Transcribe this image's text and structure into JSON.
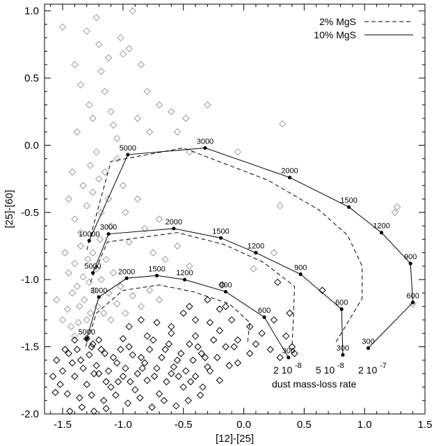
{
  "chart_data": {
    "type": "scatter",
    "xlabel": "[12]-[25]",
    "ylabel": "[25]-[60]",
    "xlim": [
      -1.65,
      1.5
    ],
    "ylim": [
      -2.0,
      1.05
    ],
    "xticks": [
      "-1.5",
      "-1.0",
      "-0.5",
      "0.0",
      "0.5",
      "1.0",
      "1.5"
    ],
    "xtick_values": [
      -1.5,
      -1.0,
      -0.5,
      0.0,
      0.5,
      1.0,
      1.5
    ],
    "yticks": [
      "1.0",
      "0.5",
      "0.0",
      "-0.5",
      "-1.0",
      "-1.5",
      "-2.0"
    ],
    "ytick_values": [
      1.0,
      0.5,
      0.0,
      -0.5,
      -1.0,
      -1.5,
      -2.0
    ],
    "legend": {
      "position": "top-right",
      "entries": [
        {
          "label": "2% MgS",
          "style": "dashed"
        },
        {
          "label": "10% MgS",
          "style": "solid"
        }
      ]
    },
    "annotations": {
      "rates": [
        "2 10",
        "5 10",
        "2 10"
      ],
      "rate_exponents": [
        "-8",
        "-8",
        "-7"
      ],
      "rate_caption": "dust mass-loss rate"
    },
    "models_solid": [
      {
        "name": "2 10-8",
        "points": [
          {
            "x": -1.3,
            "y": -1.44,
            "label": "5000"
          },
          {
            "x": -1.2,
            "y": -1.13,
            "label": "3000"
          },
          {
            "x": -0.97,
            "y": -0.99,
            "label": "2000"
          },
          {
            "x": -0.72,
            "y": -0.97,
            "label": "1500"
          },
          {
            "x": -0.49,
            "y": -1.0,
            "label": "1200"
          },
          {
            "x": -0.15,
            "y": -1.09,
            "label": "900"
          },
          {
            "x": 0.17,
            "y": -1.28,
            "label": "600"
          },
          {
            "x": 0.37,
            "y": -1.58,
            "label": "300"
          }
        ]
      },
      {
        "name": "5 10-8",
        "points": [
          {
            "x": -1.25,
            "y": -0.95,
            "label": "5000"
          },
          {
            "x": -1.12,
            "y": -0.66,
            "label": "3000"
          },
          {
            "x": -0.58,
            "y": -0.62,
            "label": "2000"
          },
          {
            "x": -0.19,
            "y": -0.69,
            "label": "1500"
          },
          {
            "x": 0.1,
            "y": -0.8,
            "label": "1200"
          },
          {
            "x": 0.47,
            "y": -0.96,
            "label": "900"
          },
          {
            "x": 0.81,
            "y": -1.22,
            "label": "600"
          },
          {
            "x": 0.82,
            "y": -1.56,
            "label": "300"
          }
        ]
      },
      {
        "name": "2 10-7",
        "points": [
          {
            "x": -1.28,
            "y": -0.71,
            "label": "10000"
          },
          {
            "x": -0.96,
            "y": -0.07,
            "label": "5000"
          },
          {
            "x": -0.32,
            "y": -0.02,
            "label": "3000"
          },
          {
            "x": 0.38,
            "y": -0.24,
            "label": "2000"
          },
          {
            "x": 0.87,
            "y": -0.46,
            "label": "1500"
          },
          {
            "x": 1.14,
            "y": -0.65,
            "label": "1200"
          },
          {
            "x": 1.38,
            "y": -0.88,
            "label": "900"
          },
          {
            "x": 1.4,
            "y": -1.17,
            "label": "600"
          },
          {
            "x": 1.03,
            "y": -1.51,
            "label": "300"
          }
        ]
      }
    ],
    "models_dashed": [
      {
        "name": "2 10-8",
        "points": [
          {
            "x": -1.31,
            "y": -1.5
          },
          {
            "x": -1.22,
            "y": -1.25
          },
          {
            "x": -1.0,
            "y": -1.08
          },
          {
            "x": -0.7,
            "y": -1.04
          },
          {
            "x": -0.42,
            "y": -1.09
          },
          {
            "x": -0.12,
            "y": -1.18
          },
          {
            "x": 0.05,
            "y": -1.32
          },
          {
            "x": 0.03,
            "y": -1.48
          }
        ]
      },
      {
        "name": "5 10-8",
        "points": [
          {
            "x": -1.27,
            "y": -1.02
          },
          {
            "x": -1.13,
            "y": -0.72
          },
          {
            "x": -0.55,
            "y": -0.65
          },
          {
            "x": -0.16,
            "y": -0.74
          },
          {
            "x": 0.16,
            "y": -0.87
          },
          {
            "x": 0.42,
            "y": -1.05
          },
          {
            "x": 0.41,
            "y": -1.3
          },
          {
            "x": 0.4,
            "y": -1.49
          }
        ]
      },
      {
        "name": "2 10-7",
        "points": [
          {
            "x": -1.3,
            "y": -0.78
          },
          {
            "x": -1.1,
            "y": -0.12
          },
          {
            "x": -0.5,
            "y": -0.02
          },
          {
            "x": 0.2,
            "y": -0.26
          },
          {
            "x": 0.62,
            "y": -0.48
          },
          {
            "x": 0.86,
            "y": -0.67
          },
          {
            "x": 0.98,
            "y": -0.9
          },
          {
            "x": 0.98,
            "y": -1.14
          },
          {
            "x": 0.76,
            "y": -1.47
          }
        ]
      }
    ],
    "observed_gray": [
      {
        "x": -1.5,
        "y": 0.88
      },
      {
        "x": -1.4,
        "y": 0.6
      },
      {
        "x": -1.35,
        "y": 0.45
      },
      {
        "x": -1.3,
        "y": 0.85
      },
      {
        "x": -1.28,
        "y": 0.3
      },
      {
        "x": -1.25,
        "y": 0.2
      },
      {
        "x": -1.22,
        "y": 0.95
      },
      {
        "x": -1.2,
        "y": 0.75
      },
      {
        "x": -1.18,
        "y": 0.55
      },
      {
        "x": -1.15,
        "y": 0.4
      },
      {
        "x": -1.12,
        "y": 0.65
      },
      {
        "x": -1.1,
        "y": 0.25
      },
      {
        "x": -1.08,
        "y": 0.15
      },
      {
        "x": -1.05,
        "y": 0.05
      },
      {
        "x": -1.02,
        "y": 0.8
      },
      {
        "x": -1.0,
        "y": 0.68
      },
      {
        "x": -0.95,
        "y": 0.72
      },
      {
        "x": -0.92,
        "y": 1.0
      },
      {
        "x": -0.88,
        "y": 0.2
      },
      {
        "x": -0.85,
        "y": 0.6
      },
      {
        "x": -0.8,
        "y": 0.4
      },
      {
        "x": -0.78,
        "y": 0.1
      },
      {
        "x": -0.7,
        "y": 0.3
      },
      {
        "x": -0.6,
        "y": 0.25
      },
      {
        "x": -0.55,
        "y": 0.1
      },
      {
        "x": -0.48,
        "y": 0.2
      },
      {
        "x": -0.3,
        "y": 0.3
      },
      {
        "x": -0.45,
        "y": -0.05
      },
      {
        "x": -0.05,
        "y": -0.05
      },
      {
        "x": 0.32,
        "y": 0.16
      },
      {
        "x": -1.38,
        "y": 0.1
      },
      {
        "x": -1.42,
        "y": -0.2
      },
      {
        "x": -1.45,
        "y": -0.4
      },
      {
        "x": -1.4,
        "y": -0.55
      },
      {
        "x": -1.35,
        "y": -0.65
      },
      {
        "x": -1.33,
        "y": -0.3
      },
      {
        "x": -1.3,
        "y": -0.45
      },
      {
        "x": -1.27,
        "y": -0.15
      },
      {
        "x": -1.25,
        "y": -0.35
      },
      {
        "x": -1.22,
        "y": -0.05
      },
      {
        "x": -1.2,
        "y": -0.25
      },
      {
        "x": -1.18,
        "y": -0.5
      },
      {
        "x": -1.15,
        "y": -0.2
      },
      {
        "x": -1.12,
        "y": -0.4
      },
      {
        "x": -1.1,
        "y": -0.6
      },
      {
        "x": -1.05,
        "y": -0.1
      },
      {
        "x": -1.0,
        "y": -0.3
      },
      {
        "x": -0.98,
        "y": -0.5
      },
      {
        "x": -0.95,
        "y": -0.72
      },
      {
        "x": -0.88,
        "y": -0.4
      },
      {
        "x": -0.82,
        "y": -0.62
      },
      {
        "x": -0.75,
        "y": -0.8
      },
      {
        "x": -0.7,
        "y": -0.55
      },
      {
        "x": -0.65,
        "y": -0.85
      },
      {
        "x": -0.55,
        "y": -0.75
      },
      {
        "x": -0.45,
        "y": -0.9
      },
      {
        "x": -1.48,
        "y": -0.8
      },
      {
        "x": -1.45,
        "y": -0.95
      },
      {
        "x": -1.42,
        "y": -1.1
      },
      {
        "x": -1.4,
        "y": -0.88
      },
      {
        "x": -1.38,
        "y": -1.05
      },
      {
        "x": -1.36,
        "y": -1.2
      },
      {
        "x": -1.35,
        "y": -0.75
      },
      {
        "x": -1.33,
        "y": -0.98
      },
      {
        "x": -1.32,
        "y": -1.15
      },
      {
        "x": -1.3,
        "y": -1.3
      },
      {
        "x": -1.29,
        "y": -0.85
      },
      {
        "x": -1.28,
        "y": -1.02
      },
      {
        "x": -1.27,
        "y": -1.25
      },
      {
        "x": -1.25,
        "y": -0.8
      },
      {
        "x": -1.24,
        "y": -1.08
      },
      {
        "x": -1.22,
        "y": -0.92
      },
      {
        "x": -1.21,
        "y": -1.2
      },
      {
        "x": -1.19,
        "y": -0.7
      },
      {
        "x": -1.18,
        "y": -1.0
      },
      {
        "x": -1.16,
        "y": -1.25
      },
      {
        "x": -1.14,
        "y": -0.85
      },
      {
        "x": -1.12,
        "y": -1.1
      },
      {
        "x": -1.1,
        "y": -1.3
      },
      {
        "x": -1.08,
        "y": -0.95
      },
      {
        "x": -1.05,
        "y": -1.18
      },
      {
        "x": -1.02,
        "y": -1.05
      },
      {
        "x": -0.98,
        "y": -1.25
      },
      {
        "x": -0.92,
        "y": -1.12
      },
      {
        "x": -0.85,
        "y": -1.2
      },
      {
        "x": -0.78,
        "y": -1.08
      },
      {
        "x": -0.7,
        "y": -1.15
      },
      {
        "x": -1.55,
        "y": -1.15
      },
      {
        "x": -1.5,
        "y": -1.3
      },
      {
        "x": -1.46,
        "y": -1.22
      },
      {
        "x": -1.43,
        "y": -1.35
      },
      {
        "x": -1.4,
        "y": -1.42
      },
      {
        "x": -1.37,
        "y": -1.32
      },
      {
        "x": 0.3,
        "y": -0.45
      },
      {
        "x": 0.25,
        "y": -0.8
      },
      {
        "x": 1.25,
        "y": -0.5
      },
      {
        "x": 1.27,
        "y": -0.46
      },
      {
        "x": 0.08,
        "y": -0.92
      },
      {
        "x": 1.4,
        "y": -1.18
      }
    ],
    "observed_black": [
      {
        "x": 0.28,
        "y": -1.02
      },
      {
        "x": 0.38,
        "y": -1.25
      },
      {
        "x": 0.4,
        "y": -1.5
      },
      {
        "x": 0.3,
        "y": -1.58
      },
      {
        "x": 0.42,
        "y": -1.55
      },
      {
        "x": 0.15,
        "y": -1.4
      },
      {
        "x": 0.05,
        "y": -1.35
      },
      {
        "x": -0.1,
        "y": -1.3
      },
      {
        "x": -0.2,
        "y": -1.22
      },
      {
        "x": -0.3,
        "y": -1.15
      },
      {
        "x": -0.4,
        "y": -1.3
      },
      {
        "x": -0.5,
        "y": -1.25
      },
      {
        "x": -0.6,
        "y": -1.35
      },
      {
        "x": 0.05,
        "y": -1.55
      },
      {
        "x": -0.05,
        "y": -1.62
      },
      {
        "x": -0.15,
        "y": -1.5
      },
      {
        "x": 0.65,
        "y": -1.08
      },
      {
        "x": -0.25,
        "y": -1.45
      },
      {
        "x": -0.35,
        "y": -1.55
      },
      {
        "x": -0.45,
        "y": -1.48
      },
      {
        "x": -0.55,
        "y": -1.6
      },
      {
        "x": -0.65,
        "y": -1.52
      },
      {
        "x": -0.75,
        "y": -1.45
      },
      {
        "x": -0.85,
        "y": -1.58
      },
      {
        "x": -0.95,
        "y": -1.5
      },
      {
        "x": -1.05,
        "y": -1.62
      },
      {
        "x": -1.15,
        "y": -1.55
      },
      {
        "x": -1.25,
        "y": -1.48
      },
      {
        "x": -1.35,
        "y": -1.6
      },
      {
        "x": -1.45,
        "y": -1.55
      },
      {
        "x": -1.5,
        "y": -1.68
      },
      {
        "x": -1.4,
        "y": -1.72
      },
      {
        "x": -1.3,
        "y": -1.78
      },
      {
        "x": -1.2,
        "y": -1.7
      },
      {
        "x": -1.1,
        "y": -1.8
      },
      {
        "x": -1.0,
        "y": -1.72
      },
      {
        "x": -0.9,
        "y": -1.82
      },
      {
        "x": -0.8,
        "y": -1.75
      },
      {
        "x": -0.7,
        "y": -1.85
      },
      {
        "x": -0.6,
        "y": -1.7
      },
      {
        "x": -0.5,
        "y": -1.8
      },
      {
        "x": -0.4,
        "y": -1.72
      },
      {
        "x": -0.3,
        "y": -1.65
      },
      {
        "x": -0.2,
        "y": -1.75
      },
      {
        "x": -1.48,
        "y": -1.52
      },
      {
        "x": -1.42,
        "y": -1.62
      },
      {
        "x": -1.38,
        "y": -1.52
      },
      {
        "x": -1.33,
        "y": -1.66
      },
      {
        "x": -1.28,
        "y": -1.56
      },
      {
        "x": -1.22,
        "y": -1.64
      },
      {
        "x": -1.18,
        "y": -1.52
      },
      {
        "x": -1.12,
        "y": -1.68
      },
      {
        "x": -1.08,
        "y": -1.58
      },
      {
        "x": -1.02,
        "y": -1.52
      },
      {
        "x": -0.98,
        "y": -1.66
      },
      {
        "x": -0.92,
        "y": -1.56
      },
      {
        "x": -0.88,
        "y": -1.7
      },
      {
        "x": -0.82,
        "y": -1.62
      },
      {
        "x": -0.78,
        "y": -1.52
      },
      {
        "x": -0.72,
        "y": -1.66
      },
      {
        "x": -0.68,
        "y": -1.58
      },
      {
        "x": -0.62,
        "y": -1.48
      },
      {
        "x": -0.58,
        "y": -1.65
      },
      {
        "x": -0.52,
        "y": -1.55
      },
      {
        "x": -0.48,
        "y": -1.68
      },
      {
        "x": -0.42,
        "y": -1.6
      },
      {
        "x": -0.38,
        "y": -1.5
      },
      {
        "x": -0.32,
        "y": -1.58
      },
      {
        "x": -0.28,
        "y": -1.68
      },
      {
        "x": -0.22,
        "y": -1.58
      },
      {
        "x": -0.12,
        "y": -1.64
      },
      {
        "x": -0.08,
        "y": -1.5
      },
      {
        "x": -1.55,
        "y": -1.6
      },
      {
        "x": -1.52,
        "y": -1.78
      },
      {
        "x": -1.46,
        "y": -1.85
      },
      {
        "x": -1.36,
        "y": -1.88
      },
      {
        "x": -1.26,
        "y": -1.86
      },
      {
        "x": -1.16,
        "y": -1.9
      },
      {
        "x": -1.06,
        "y": -1.86
      },
      {
        "x": -0.96,
        "y": -1.92
      },
      {
        "x": -0.86,
        "y": -1.88
      },
      {
        "x": -0.76,
        "y": -1.95
      },
      {
        "x": -0.66,
        "y": -1.9
      },
      {
        "x": -0.56,
        "y": -1.94
      },
      {
        "x": -0.46,
        "y": -1.9
      },
      {
        "x": -0.36,
        "y": -1.86
      },
      {
        "x": -1.44,
        "y": -1.98
      },
      {
        "x": -1.34,
        "y": -1.95
      },
      {
        "x": -1.24,
        "y": -1.98
      },
      {
        "x": -1.14,
        "y": -1.96
      },
      {
        "x": -1.3,
        "y": -1.44
      },
      {
        "x": -1.26,
        "y": -1.5
      },
      {
        "x": -1.24,
        "y": -1.7
      },
      {
        "x": -1.14,
        "y": -1.76
      },
      {
        "x": -1.04,
        "y": -1.76
      },
      {
        "x": -0.94,
        "y": -1.76
      },
      {
        "x": -0.84,
        "y": -1.66
      },
      {
        "x": -0.74,
        "y": -1.72
      },
      {
        "x": -0.64,
        "y": -1.76
      },
      {
        "x": -0.54,
        "y": -1.72
      },
      {
        "x": -0.44,
        "y": -1.76
      },
      {
        "x": -0.34,
        "y": -1.8
      },
      {
        "x": -1.58,
        "y": -1.72
      },
      {
        "x": -1.56,
        "y": -1.84
      },
      {
        "x": -1.4,
        "y": -1.45
      },
      {
        "x": -1.2,
        "y": -1.45
      },
      {
        "x": -1.0,
        "y": -1.44
      },
      {
        "x": -0.8,
        "y": -1.42
      },
      {
        "x": -0.6,
        "y": -1.4
      },
      {
        "x": -0.4,
        "y": -1.42
      },
      {
        "x": -0.2,
        "y": -1.38
      },
      {
        "x": -0.95,
        "y": -1.35
      },
      {
        "x": -0.85,
        "y": -1.3
      },
      {
        "x": -0.72,
        "y": -1.32
      },
      {
        "x": -0.45,
        "y": -1.2
      },
      {
        "x": -0.28,
        "y": -1.32
      },
      {
        "x": -0.15,
        "y": -1.2
      },
      {
        "x": -0.05,
        "y": -1.45
      },
      {
        "x": 0.1,
        "y": -1.48
      },
      {
        "x": 0.22,
        "y": -1.52
      },
      {
        "x": 0.25,
        "y": -1.3
      },
      {
        "x": 0.35,
        "y": -1.42
      },
      {
        "x": -0.18,
        "y": -1.04
      }
    ]
  }
}
